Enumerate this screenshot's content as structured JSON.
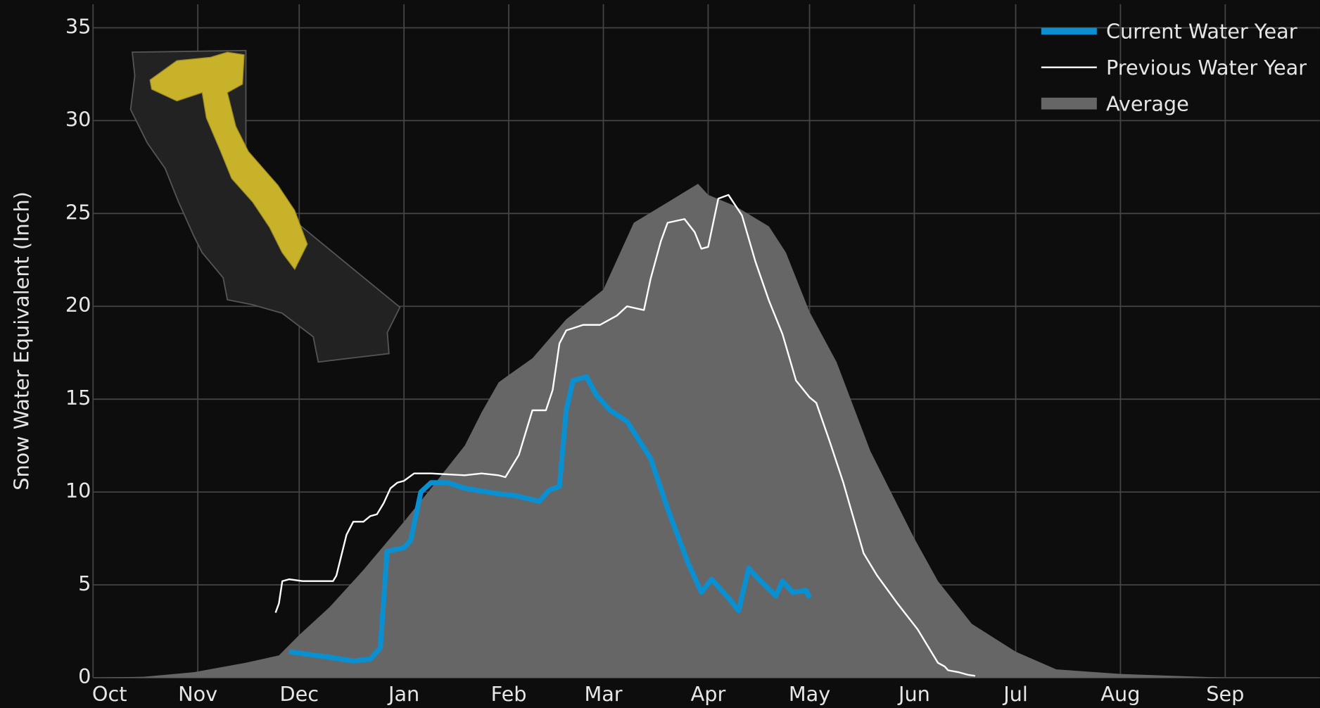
{
  "chart_data": {
    "type": "line",
    "y_label": "Snow Water Equivalent (Inch)",
    "xlim": [
      0,
      363
    ],
    "xticks": [
      {
        "value": 0,
        "label": "Oct"
      },
      {
        "value": 31,
        "label": "Nov"
      },
      {
        "value": 61,
        "label": "Dec"
      },
      {
        "value": 92,
        "label": "Jan"
      },
      {
        "value": 123,
        "label": "Feb"
      },
      {
        "value": 151,
        "label": "Mar"
      },
      {
        "value": 182,
        "label": "Apr"
      },
      {
        "value": 212,
        "label": "May"
      },
      {
        "value": 243,
        "label": "Jun"
      },
      {
        "value": 273,
        "label": "Jul"
      },
      {
        "value": 304,
        "label": "Aug"
      },
      {
        "value": 335,
        "label": "Sep"
      }
    ],
    "ylim": [
      0,
      35
    ],
    "yticks": [
      0,
      5,
      10,
      15,
      20,
      25,
      30,
      35
    ],
    "grid": true,
    "legend": "upper right",
    "series": [
      {
        "name": "Current Water Year",
        "color": "#0a8fd0",
        "kind": "line",
        "x": [
          58,
          70,
          77,
          82,
          85,
          87,
          92,
          94,
          97,
          100,
          105,
          110,
          120,
          125,
          132,
          135,
          138,
          140,
          142,
          146,
          149,
          153,
          158,
          165,
          170,
          176,
          180,
          183,
          188,
          191,
          194,
          197,
          202,
          204,
          207,
          211,
          212
        ],
        "values": [
          1.4,
          1.1,
          0.9,
          1.0,
          1.6,
          6.8,
          7.0,
          7.4,
          10.0,
          10.5,
          10.5,
          10.2,
          9.9,
          9.8,
          9.5,
          10.1,
          10.3,
          14.4,
          16.0,
          16.2,
          15.2,
          14.4,
          13.8,
          11.8,
          9.1,
          6.2,
          4.6,
          5.3,
          4.3,
          3.6,
          5.9,
          5.3,
          4.4,
          5.2,
          4.6,
          4.7,
          4.3
        ]
      },
      {
        "name": "Previous Water Year",
        "color": "#ffffff",
        "kind": "line",
        "x": [
          54,
          55,
          56,
          58,
          62,
          71,
          72,
          75,
          77,
          80,
          82,
          84,
          86,
          88,
          90,
          92,
          95,
          100,
          110,
          115,
          120,
          122,
          126,
          128,
          130,
          134,
          136,
          138,
          140,
          145,
          150,
          155,
          158,
          163,
          165,
          168,
          170,
          175,
          178,
          180,
          182,
          185,
          188,
          192,
          196,
          200,
          204,
          208,
          212,
          214,
          218,
          222,
          228,
          232,
          238,
          244,
          250,
          252,
          253,
          256,
          259,
          261
        ],
        "values": [
          3.5,
          4.0,
          5.2,
          5.3,
          5.2,
          5.2,
          5.5,
          7.7,
          8.4,
          8.4,
          8.7,
          8.8,
          9.4,
          10.2,
          10.5,
          10.6,
          11.0,
          11.0,
          10.9,
          11.0,
          10.9,
          10.8,
          12.0,
          13.2,
          14.4,
          14.4,
          15.5,
          18.0,
          18.7,
          19.0,
          19.0,
          19.5,
          20.0,
          19.8,
          21.5,
          23.5,
          24.5,
          24.7,
          24.0,
          23.1,
          23.2,
          25.8,
          26.0,
          24.9,
          22.4,
          20.3,
          18.5,
          16.0,
          15.1,
          14.8,
          12.7,
          10.5,
          6.7,
          5.5,
          4.0,
          2.6,
          0.8,
          0.6,
          0.4,
          0.3,
          0.15,
          0.1
        ]
      },
      {
        "name": "Average",
        "color": "#666666",
        "kind": "area",
        "x": [
          0,
          15,
          30,
          45,
          55,
          61,
          70,
          80,
          92,
          100,
          110,
          115,
          120,
          123,
          130,
          140,
          151,
          160,
          170,
          179,
          182,
          190,
          200,
          205,
          212,
          220,
          230,
          243,
          250,
          260,
          273,
          285,
          304,
          335,
          363
        ],
        "values": [
          0,
          0.05,
          0.3,
          0.8,
          1.2,
          2.3,
          3.8,
          5.8,
          8.4,
          10.2,
          12.5,
          14.3,
          15.9,
          16.3,
          17.2,
          19.3,
          20.9,
          24.5,
          25.6,
          26.6,
          26.0,
          25.4,
          24.3,
          22.9,
          19.7,
          17.0,
          12.2,
          7.5,
          5.2,
          2.9,
          1.4,
          0.45,
          0.2,
          0.0,
          0.0
        ]
      }
    ]
  }
}
